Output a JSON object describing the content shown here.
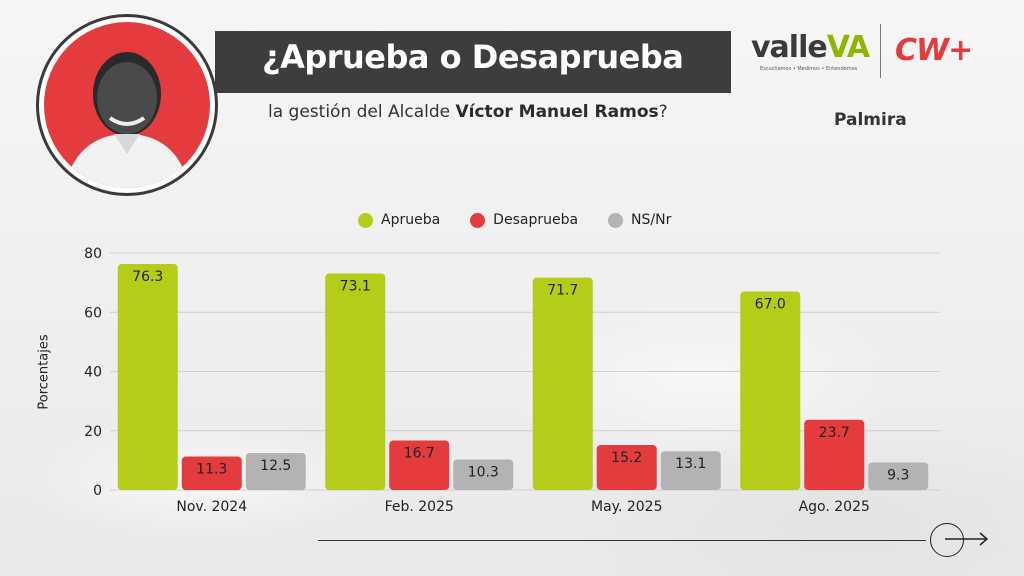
{
  "header": {
    "title": "¿Aprueba o Desaprueba",
    "subtitle_prefix": "la gestión del Alcalde ",
    "subtitle_name": "Víctor Manuel Ramos",
    "subtitle_suffix": "?",
    "city": "Palmira"
  },
  "logos": {
    "valle_part1": "valle",
    "valle_part2": "VA",
    "valle_tagline": "Escuchamos • Medimos • Entendemos",
    "cw": "CW+"
  },
  "colors": {
    "aprueba": "#b5cc18",
    "desaprueba": "#e43b3e",
    "nsnr": "#b3b3b3",
    "title_bar": "#3d3d3d"
  },
  "chart_data": {
    "type": "bar",
    "categories": [
      "Nov. 2024",
      "Feb. 2025",
      "May. 2025",
      "Ago. 2025"
    ],
    "series": [
      {
        "name": "Aprueba",
        "values": [
          76.3,
          73.1,
          71.7,
          67.0
        ],
        "labels": [
          "76.3",
          "73.1",
          "71.7",
          "67.0"
        ],
        "color": "#b5cc18"
      },
      {
        "name": "Desaprueba",
        "values": [
          11.3,
          16.7,
          15.2,
          23.7
        ],
        "labels": [
          "11.3",
          "16.7",
          "15.2",
          "23.7"
        ],
        "color": "#e43b3e"
      },
      {
        "name": "NS/Nr",
        "values": [
          12.5,
          10.3,
          13.1,
          9.3
        ],
        "labels": [
          "12.5",
          "10.3",
          "13.1",
          "9.3"
        ],
        "color": "#b3b3b3"
      }
    ],
    "ylabel": "Porcentajes",
    "xlabel": "",
    "ylim": [
      0,
      80
    ],
    "yticks": [
      0,
      20,
      40,
      60,
      80
    ],
    "grid": true,
    "legend_position": "top"
  }
}
